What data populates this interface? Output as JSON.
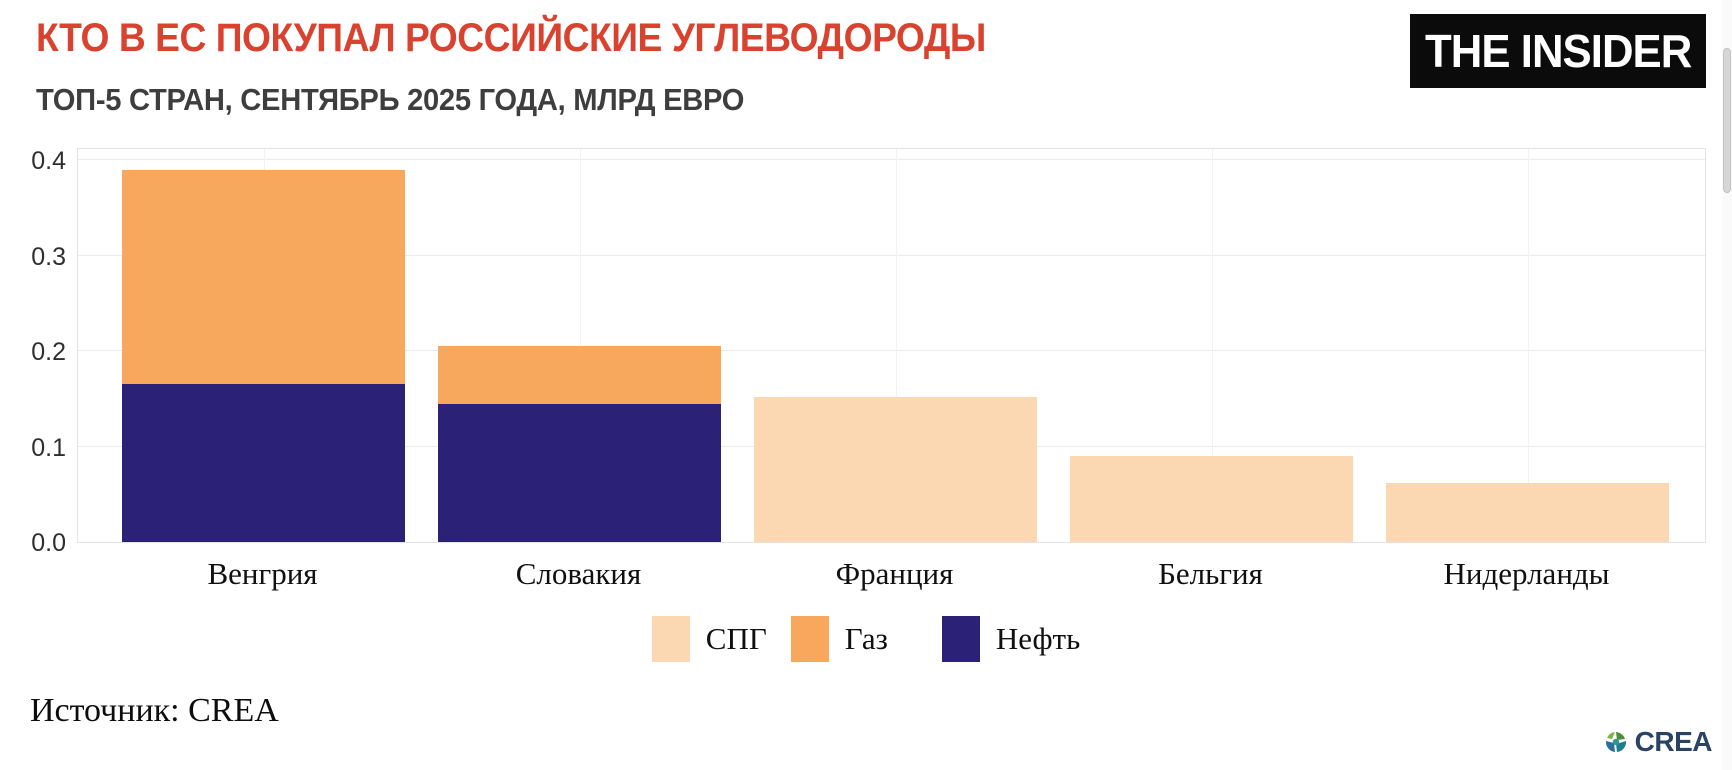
{
  "header": {
    "title": "КТО В ЕС ПОКУПАЛ РОССИЙСКИЕ УГЛЕВОДОРОДЫ",
    "title_color": "#d8422f",
    "subtitle": "ТОП-5 СТРАН, СЕНТЯБРЬ 2025 ГОДА, МЛРД ЕВРО",
    "logo_text": "THE INSIDER"
  },
  "chart_data": {
    "type": "bar",
    "stacked": true,
    "title": "КТО В ЕС ПОКУПАЛ РОССИЙСКИЕ УГЛЕВОДОРОДЫ",
    "subtitle": "ТОП-5 СТРАН, СЕНТЯБРЬ 2025 ГОДА, МЛРД ЕВРО",
    "unit": "млрд евро",
    "categories": [
      "Венгрия",
      "Словакия",
      "Франция",
      "Бельгия",
      "Нидерланды"
    ],
    "series": [
      {
        "name": "СПГ",
        "color": "#fbd8b2",
        "values": [
          0,
          0,
          0.152,
          0.09,
          0.062
        ]
      },
      {
        "name": "Газ",
        "color": "#f7a85c",
        "values": [
          0.225,
          0.06,
          0,
          0,
          0
        ]
      },
      {
        "name": "Нефть",
        "color": "#2b2176",
        "values": [
          0.165,
          0.145,
          0,
          0,
          0
        ]
      }
    ],
    "stack_order_bottom_to_top": [
      "Нефть",
      "СПГ",
      "Газ"
    ],
    "totals": [
      0.39,
      0.205,
      0.152,
      0.09,
      0.062
    ],
    "xlabel": "",
    "ylabel": "",
    "y_ticks": [
      0.0,
      0.1,
      0.2,
      0.3,
      0.4
    ],
    "ylim": [
      0,
      0.414
    ],
    "grid": true,
    "grid_color": "#ececec",
    "border_color": "#e3e3e3",
    "legend_position": "bottom",
    "legend": [
      "СПГ",
      "Газ",
      "Нефть"
    ]
  },
  "footer": {
    "source": "Источник: CREA",
    "crea_label": "CREA"
  }
}
